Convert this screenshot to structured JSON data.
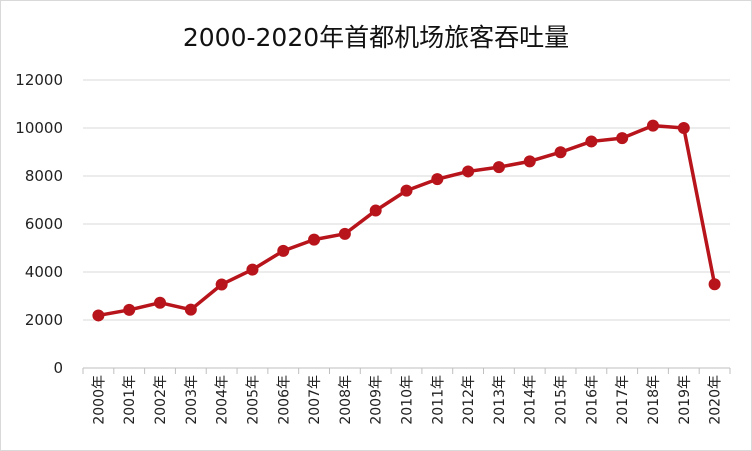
{
  "chart_data": {
    "type": "line",
    "title": "2000-2020年首都机场旅客吞吐量",
    "xlabel": "",
    "ylabel": "",
    "categories": [
      "2000年",
      "2001年",
      "2002年",
      "2003年",
      "2004年",
      "2005年",
      "2006年",
      "2007年",
      "2008年",
      "2009年",
      "2010年",
      "2011年",
      "2012年",
      "2013年",
      "2014年",
      "2015年",
      "2016年",
      "2017年",
      "2018年",
      "2019年",
      "2020年"
    ],
    "series": [
      {
        "values": [
          2190,
          2420,
          2720,
          2430,
          3480,
          4100,
          4880,
          5350,
          5590,
          6560,
          7390,
          7870,
          8190,
          8370,
          8610,
          8990,
          9440,
          9580,
          10100,
          10000,
          3490
        ],
        "color": "#b8141b"
      }
    ],
    "ylim": [
      0,
      12000
    ],
    "yticks": [
      "0",
      "2000",
      "4000",
      "6000",
      "8000",
      "10000",
      "12000"
    ],
    "grid": true,
    "legend": "none"
  }
}
